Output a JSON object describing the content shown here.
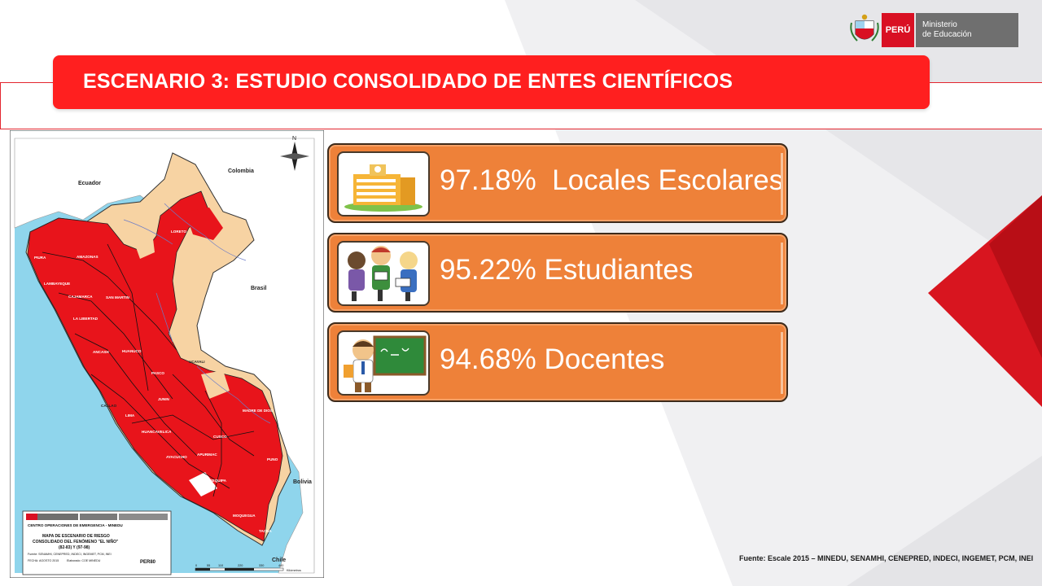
{
  "header": {
    "title": "ESCENARIO 3: ESTUDIO CONSOLIDADO DE ENTES CIENTÍFICOS",
    "logo": {
      "country": "PERÚ",
      "ministry_line1": "Ministerio",
      "ministry_line2": "de Educación",
      "icon": "coat-of-arms-icon"
    }
  },
  "stats": [
    {
      "value": "97.18%",
      "text": "Locales Escolares",
      "icon": "school-building-icon"
    },
    {
      "value": "95.22%",
      "text": "Estudiantes",
      "icon": "students-icon"
    },
    {
      "value": "94.68%",
      "text": "Docentes",
      "icon": "teacher-icon"
    }
  ],
  "map": {
    "countries": [
      "Colombia",
      "Ecuador",
      "Brasil",
      "Bolivia",
      "Chile"
    ],
    "regions": [
      "LORETO",
      "AMAZONAS",
      "PIURA",
      "LAMBAYEQUE",
      "CAJAMARCA",
      "SAN MARTIN",
      "LA LIBERTAD",
      "ANCASH",
      "HUANUCO",
      "UCAYALI",
      "PASCO",
      "JUNIN",
      "CALLAO",
      "LIMA",
      "MADRE DE DIOS",
      "CUSCO",
      "HUANCAVELICA",
      "AYACUCHO",
      "APURIMAC",
      "PUNO",
      "AREQUIPA",
      "MOQUEGUA",
      "TACNA"
    ],
    "legend": {
      "centro": "CENTRO OPERACIONES DE EMERGENCIA - MINEDU",
      "title1": "MAPA DE ESCENARIO DE RIESGO",
      "title2": "CONSOLIDADO DEL FENÓMENO \"EL NIÑO\"",
      "title3": "(82-83) Y (97-98)",
      "fuente": "Fuente: SENAMHI, CENEPRED, INDECI, INGEMET, PCM, INEI",
      "fecha": "FECHA: AGOSTO 2015",
      "elaborado": "Elaborado: COE MINEDU",
      "lamina": "PER80",
      "scale": [
        "0",
        "55",
        "110",
        "220",
        "330",
        "440"
      ],
      "scale_unit": "Kilómetros"
    },
    "colors": {
      "risk": "#e8141b",
      "no_risk": "#f7d3a3",
      "sea": "#8fd5ec",
      "neighbors": "#ffffff"
    }
  },
  "footer": {
    "source": "Fuente: Escale 2015 – MINEDU, SENAMHI, CENEPRED, INDECI, INGEMET, PCM, INEI"
  }
}
